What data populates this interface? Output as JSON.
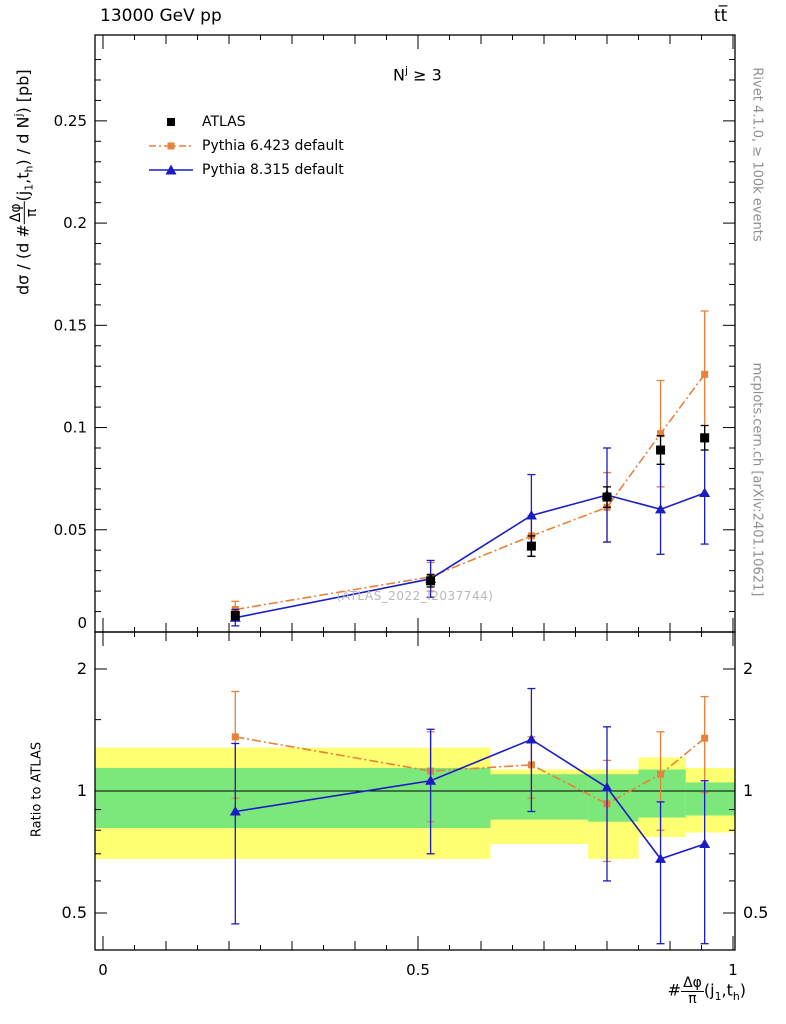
{
  "header": {
    "left": "13000 GeV pp",
    "right": "tt̅"
  },
  "side_notes": {
    "rivet": "Rivet 4.1.0, ≥ 100k events",
    "mcplots": "mcplots.cern.ch [arXiv:2401.10621]"
  },
  "watermark": "(ATLAS_2022_I2037744)",
  "annotation": {
    "base": "N",
    "sup": "j",
    "rest": " ≥ 3"
  },
  "legend": {
    "atlas": "ATLAS",
    "pythia6": "Pythia 6.423 default",
    "pythia8": "Pythia 8.315 default"
  },
  "labels": {
    "ratio_ylabel": "Ratio to ATLAS",
    "ylabel": {
      "p1": "dσ / (d #",
      "frac_num": "Δφ",
      "frac_den": "π",
      "p2": "(j",
      "sub1": "1",
      "p3": ",t",
      "sub2": "h",
      "p4": ") / d N",
      "sup": "j",
      "p5": ") [pb]"
    },
    "xlabel": {
      "p1": "#",
      "frac_num": "Δφ",
      "frac_den": "π",
      "p2": "(j",
      "sub1": "1",
      "p3": ",t",
      "sub2": "h",
      "p4": ")"
    }
  },
  "colors": {
    "atlas": "#000000",
    "pythia6": "#e8813a",
    "pythia8": "#1c1cc4",
    "band_yellow": "#ffff72",
    "band_green": "#7ce87c",
    "watermark": "#b9b9b9",
    "side_note": "#909090"
  },
  "chart_data": {
    "type": "line",
    "title": "13000 GeV pp, ttbar, N^j >= 3",
    "x": [
      0.21,
      0.52,
      0.68,
      0.8,
      0.885,
      0.955
    ],
    "xlim": [
      0,
      1
    ],
    "xticks": [
      0,
      0.5,
      1
    ],
    "xlabel": "#Δφ/π(j_1,t_h)",
    "panels": {
      "main": {
        "ylabel": "dσ / (d #Δφ/π(j_1,t_h) / d N^j) [pb]",
        "ylim": [
          0,
          0.292
        ],
        "yticks": [
          0,
          0.05,
          0.1,
          0.15,
          0.2,
          0.25
        ],
        "series": [
          {
            "name": "ATLAS",
            "key": "atlas",
            "values": [
              0.008,
              0.025,
              0.042,
              0.066,
              0.089,
              0.095
            ],
            "errors": [
              0.002,
              0.003,
              0.005,
              0.005,
              0.007,
              0.006
            ]
          },
          {
            "name": "Pythia 6.423 default",
            "key": "pythia6",
            "values": [
              0.011,
              0.027,
              0.047,
              0.061,
              0.097,
              0.126
            ],
            "errors": [
              0.004,
              0.007,
              0.01,
              0.017,
              0.026,
              0.031
            ]
          },
          {
            "name": "Pythia 8.315 default",
            "key": "pythia8",
            "values": [
              0.007,
              0.026,
              0.057,
              0.067,
              0.06,
              0.068
            ],
            "errors": [
              0.004,
              0.009,
              0.02,
              0.023,
              0.022,
              0.025
            ]
          }
        ]
      },
      "ratio": {
        "ylabel": "Ratio to ATLAS",
        "scale": "log",
        "ylim": [
          0.405,
          2.47
        ],
        "yticks": [
          0.5,
          1,
          2
        ],
        "yticks_minor": [
          0.6,
          0.7,
          0.8,
          0.9,
          1.5
        ],
        "reference_line": 1,
        "series": [
          {
            "name": "Pythia 6.423 default",
            "key": "pythia6",
            "values": [
              1.36,
              1.12,
              1.16,
              0.93,
              1.1,
              1.35
            ],
            "errors": [
              0.4,
              0.28,
              0.2,
              0.26,
              0.3,
              0.36
            ]
          },
          {
            "name": "Pythia 8.315 default",
            "key": "pythia8",
            "values": [
              0.89,
              1.06,
              1.34,
              1.02,
              0.68,
              0.74
            ],
            "errors": [
              0.42,
              0.36,
              0.45,
              0.42,
              0.26,
              0.32
            ]
          }
        ],
        "bands": [
          {
            "x0": 0.0,
            "x1": 0.615,
            "yellow": [
              0.68,
              1.28
            ],
            "green": [
              0.81,
              1.14
            ]
          },
          {
            "x0": 0.615,
            "x1": 0.77,
            "yellow": [
              0.74,
              1.13
            ],
            "green": [
              0.85,
              1.1
            ]
          },
          {
            "x0": 0.77,
            "x1": 0.85,
            "yellow": [
              0.68,
              1.13
            ],
            "green": [
              0.84,
              1.1
            ]
          },
          {
            "x0": 0.85,
            "x1": 0.925,
            "yellow": [
              0.77,
              1.21
            ],
            "green": [
              0.86,
              1.13
            ]
          },
          {
            "x0": 0.925,
            "x1": 1.0,
            "yellow": [
              0.79,
              1.14
            ],
            "green": [
              0.87,
              1.05
            ]
          }
        ]
      }
    }
  }
}
